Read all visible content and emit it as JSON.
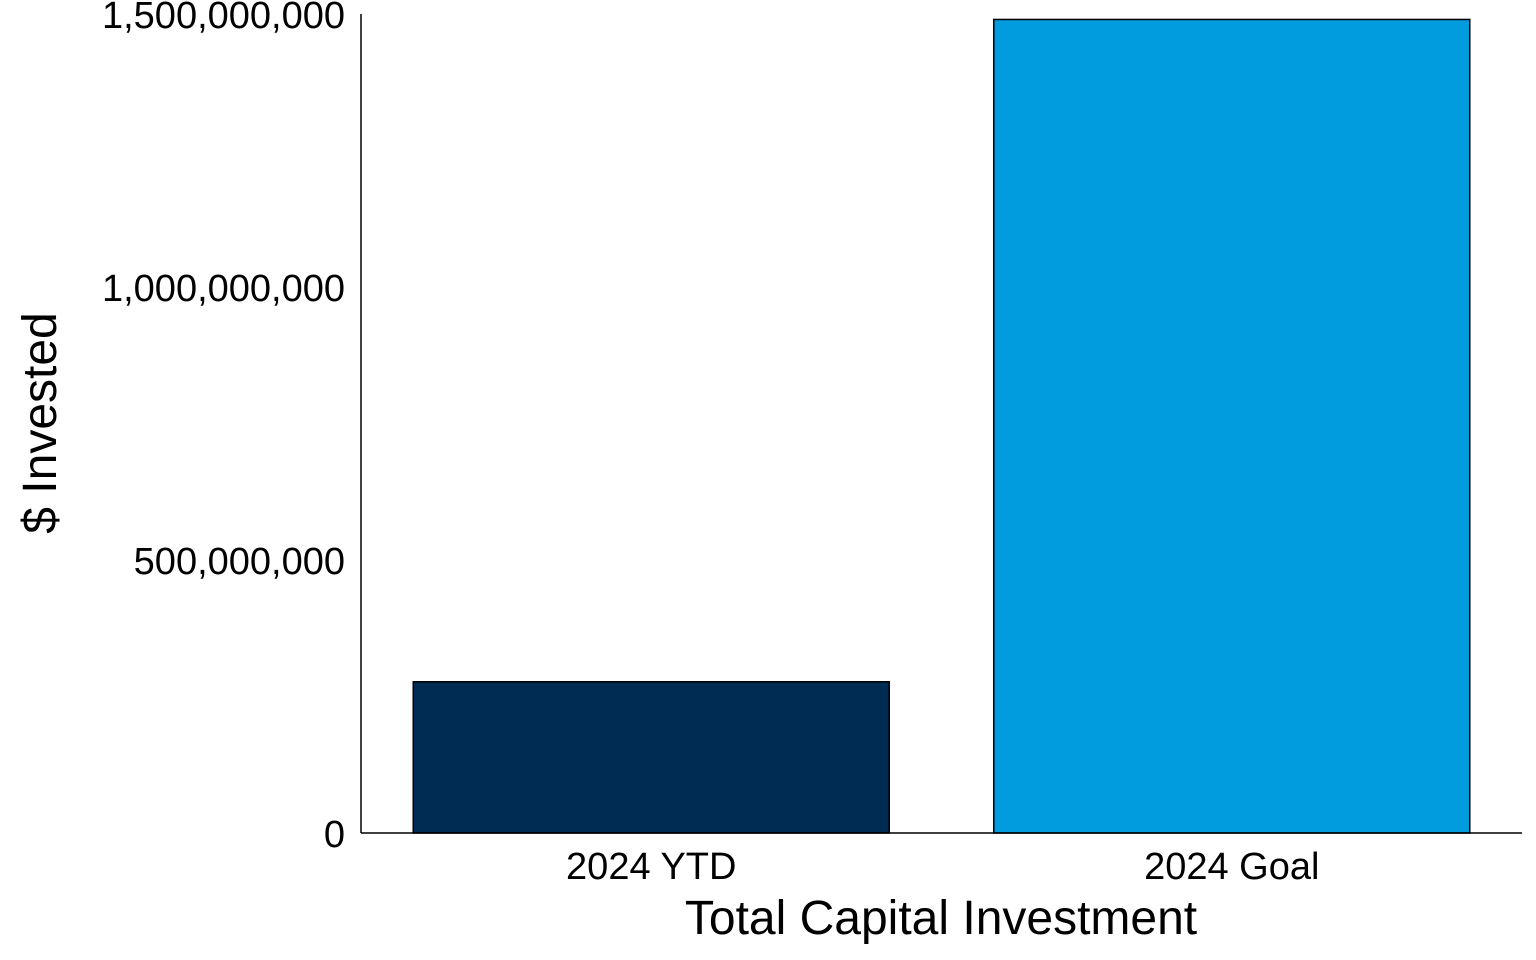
{
  "chart_data": {
    "type": "bar",
    "categories": [
      "2024 YTD",
      "2024 Goal"
    ],
    "values": [
      277000000,
      1490000000
    ],
    "colors": [
      "#002C54",
      "#009CDE"
    ],
    "title": "",
    "xlabel": "Total Capital Investment",
    "ylabel": "$ Invested",
    "ylim": [
      0,
      1500000000
    ],
    "yticks": [
      0,
      500000000,
      1000000000,
      1500000000
    ],
    "ytick_labels": [
      "0",
      "500,000,000",
      "1,000,000,000",
      "1,500,000,000"
    ],
    "grid": false,
    "legend": "none"
  }
}
